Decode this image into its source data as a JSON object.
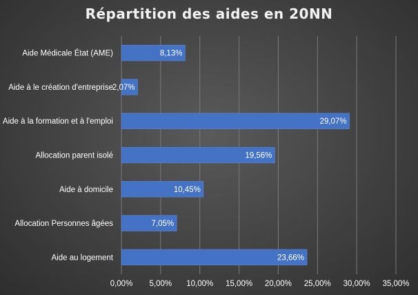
{
  "chart_data": {
    "type": "bar",
    "orientation": "horizontal",
    "title": "Répartition des aides en 20NN",
    "categories": [
      "Aide Médicale État (AME)",
      "Aide à le création d'entreprise",
      "Aide à la formation et à l'emploi",
      "Allocation parent isolé",
      "Aide à domicile",
      "Allocation Personnes âgées",
      "Aide au logement"
    ],
    "values": [
      8.13,
      2.07,
      29.07,
      19.56,
      10.45,
      7.05,
      23.66
    ],
    "value_labels": [
      "8,13%",
      "2,07%",
      "29,07%",
      "19,56%",
      "10,45%",
      "7,05%",
      "23,66%"
    ],
    "xlim": [
      0,
      35
    ],
    "xticks": [
      0,
      5,
      10,
      15,
      20,
      25,
      30,
      35
    ],
    "xtick_labels": [
      "0,00%",
      "5,00%",
      "10,00%",
      "15,00%",
      "20,00%",
      "25,00%",
      "30,00%",
      "35,00%"
    ],
    "grid": true,
    "bar_color": "#4472c4",
    "background_color": "#404040"
  }
}
